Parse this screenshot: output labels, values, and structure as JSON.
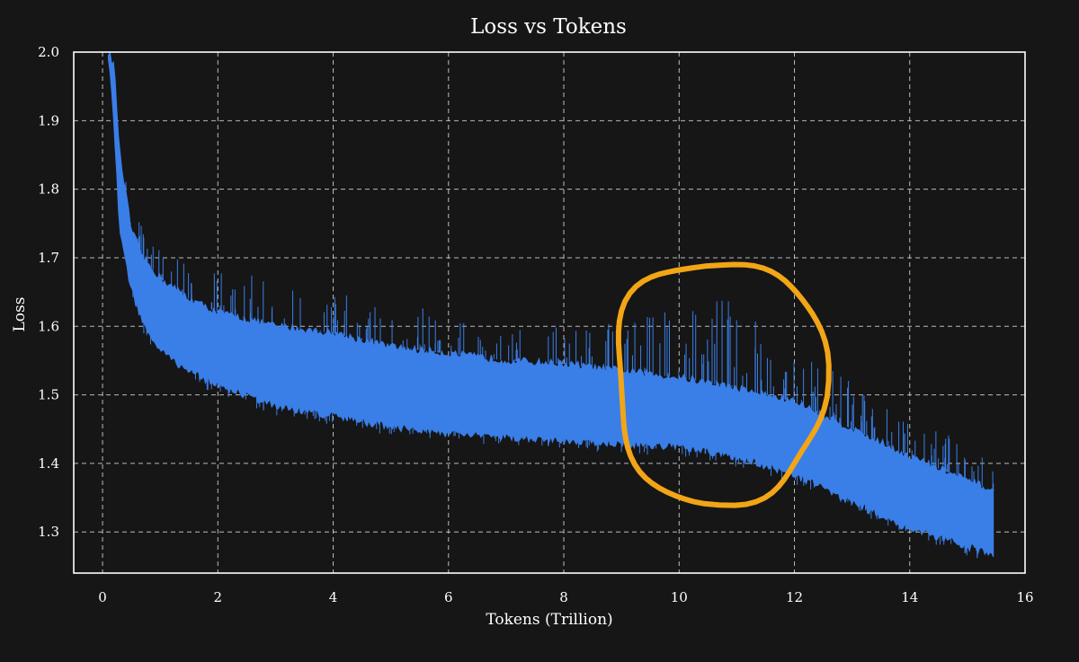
{
  "chart_data": {
    "type": "area",
    "title": "Loss vs Tokens",
    "xlabel": "Tokens (Trillion)",
    "ylabel": "Loss",
    "xlim": [
      -0.5,
      16
    ],
    "ylim": [
      1.24,
      2.0
    ],
    "xticks": [
      0,
      2,
      4,
      6,
      8,
      10,
      12,
      14,
      16
    ],
    "yticks": [
      1.3,
      1.4,
      1.5,
      1.6,
      1.7,
      1.8,
      1.9,
      2.0
    ],
    "xtick_labels": [
      "0",
      "2",
      "4",
      "6",
      "8",
      "10",
      "12",
      "14",
      "16"
    ],
    "ytick_labels": [
      "1.3",
      "1.4",
      "1.5",
      "1.6",
      "1.7",
      "1.8",
      "1.9",
      "2.0"
    ],
    "grid": true,
    "series": [
      {
        "color": "#3a7ee8",
        "x": [
          0.1,
          0.2,
          0.3,
          0.5,
          0.7,
          1.0,
          1.5,
          2.0,
          3.0,
          4.0,
          5.0,
          6.0,
          7.0,
          8.0,
          9.0,
          10.0,
          11.0,
          12.0,
          13.0,
          14.0,
          15.0,
          15.45
        ],
        "y_high": [
          2.0,
          1.98,
          1.85,
          1.74,
          1.7,
          1.67,
          1.64,
          1.62,
          1.6,
          1.59,
          1.57,
          1.56,
          1.55,
          1.545,
          1.535,
          1.525,
          1.51,
          1.49,
          1.45,
          1.41,
          1.375,
          1.36
        ],
        "y_low": [
          2.0,
          1.9,
          1.74,
          1.66,
          1.61,
          1.57,
          1.54,
          1.52,
          1.49,
          1.475,
          1.46,
          1.45,
          1.445,
          1.44,
          1.435,
          1.43,
          1.415,
          1.39,
          1.35,
          1.31,
          1.285,
          1.275
        ],
        "spike_max": [
          2.0,
          2.0,
          1.9,
          1.8,
          1.74,
          1.71,
          1.69,
          1.69,
          1.67,
          1.65,
          1.635,
          1.62,
          1.61,
          1.605,
          1.61,
          1.63,
          1.64,
          1.57,
          1.52,
          1.46,
          1.44,
          1.4
        ]
      }
    ],
    "annotations": [
      {
        "type": "hand-drawn-ellipse",
        "color": "#f2a516",
        "center": [
          10.7,
          1.52
        ],
        "rx": 1.8,
        "ry": 0.175
      }
    ]
  }
}
